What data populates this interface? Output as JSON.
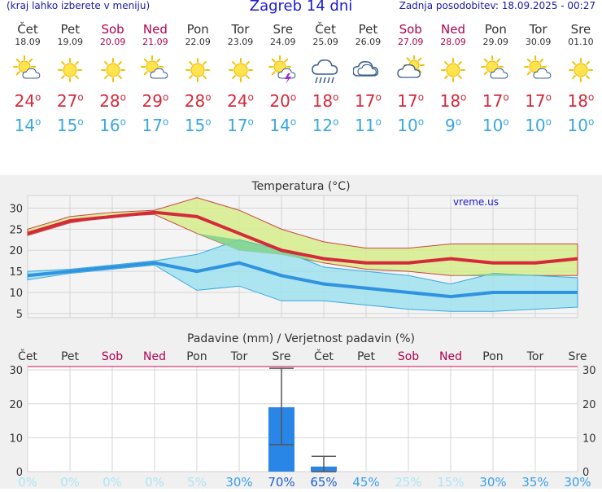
{
  "header": {
    "left_text": "(kraj lahko izberete v meniju)",
    "title": "Zagreb 14 dni",
    "updated": "Zadnja posodobitev: 18.09.2025 - 00:27"
  },
  "colors": {
    "weekday": "#333333",
    "weekend": "#b00050",
    "max_temp": "#d42a3a",
    "min_temp": "#3aa7e0",
    "link": "#1a1ad0",
    "precip_bar": "#2a86e6",
    "max_band": "#d6ec8c",
    "min_band": "#9fe0ef",
    "overlap_band": "#7fd38a"
  },
  "days": [
    {
      "name": "Čet",
      "date": "18.09",
      "weekend": false,
      "icon": "sun-cloud-icon",
      "max": "24",
      "min": "14"
    },
    {
      "name": "Pet",
      "date": "19.09",
      "weekend": false,
      "icon": "sun-icon",
      "max": "27",
      "min": "15"
    },
    {
      "name": "Sob",
      "date": "20.09",
      "weekend": true,
      "icon": "sun-icon",
      "max": "28",
      "min": "16"
    },
    {
      "name": "Ned",
      "date": "21.09",
      "weekend": true,
      "icon": "sun-cloud-icon",
      "max": "29",
      "min": "17"
    },
    {
      "name": "Pon",
      "date": "22.09",
      "weekend": false,
      "icon": "sun-icon",
      "max": "28",
      "min": "15"
    },
    {
      "name": "Tor",
      "date": "23.09",
      "weekend": false,
      "icon": "sun-icon",
      "max": "24",
      "min": "17"
    },
    {
      "name": "Sre",
      "date": "24.09",
      "weekend": false,
      "icon": "sun-storm-icon",
      "max": "20",
      "min": "14"
    },
    {
      "name": "Čet",
      "date": "25.09",
      "weekend": false,
      "icon": "cloud-rain-icon",
      "max": "18",
      "min": "12"
    },
    {
      "name": "Pet",
      "date": "26.09",
      "weekend": false,
      "icon": "cloud-icon",
      "max": "17",
      "min": "11"
    },
    {
      "name": "Sob",
      "date": "27.09",
      "weekend": true,
      "icon": "cloud-sun-icon",
      "max": "17",
      "min": "10"
    },
    {
      "name": "Ned",
      "date": "28.09",
      "weekend": true,
      "icon": "sun-icon",
      "max": "18",
      "min": "9"
    },
    {
      "name": "Pon",
      "date": "29.09",
      "weekend": false,
      "icon": "sun-cloud-icon",
      "max": "17",
      "min": "10"
    },
    {
      "name": "Tor",
      "date": "30.09",
      "weekend": false,
      "icon": "sun-cloud-icon",
      "max": "17",
      "min": "10"
    },
    {
      "name": "Sre",
      "date": "01.10",
      "weekend": false,
      "icon": "sun-icon",
      "max": "18",
      "min": "10"
    }
  ],
  "chart_data": [
    {
      "type": "line",
      "title": "Temperatura (°C)",
      "watermark": "vreme.us",
      "x_count": 14,
      "ylim": [
        4,
        33
      ],
      "yticks": [
        5,
        10,
        15,
        20,
        25,
        30
      ],
      "grid": true,
      "series": [
        {
          "key": "max",
          "values": [
            24,
            27,
            28,
            29,
            28,
            24,
            20,
            18,
            17,
            17,
            18,
            17,
            17,
            18
          ]
        },
        {
          "key": "max_range_low",
          "values": [
            23.5,
            26.5,
            28,
            28.5,
            24,
            20,
            19,
            17,
            15.5,
            15,
            14,
            14,
            14,
            14
          ]
        },
        {
          "key": "max_range_high",
          "values": [
            25,
            28,
            29,
            29.5,
            32.5,
            29.5,
            25,
            22,
            20.5,
            20.5,
            21.5,
            21.5,
            21.5,
            21.5
          ]
        },
        {
          "key": "min",
          "values": [
            14,
            15,
            16,
            17,
            15,
            17,
            14,
            12,
            11,
            10,
            9,
            10,
            10,
            10
          ]
        },
        {
          "key": "min_range_low",
          "values": [
            13,
            14.5,
            15.5,
            16.5,
            10.5,
            11.5,
            8,
            8,
            7,
            6,
            5.5,
            5.5,
            6,
            6.5
          ]
        },
        {
          "key": "min_range_high",
          "values": [
            15,
            15.5,
            16.5,
            17.5,
            19,
            22.5,
            20,
            16,
            15,
            14,
            12,
            14.5,
            14,
            13.5
          ]
        }
      ]
    },
    {
      "type": "bar",
      "title": "Padavine (mm) / Verjetnost padavin (%)",
      "categories": [
        "Čet",
        "Pet",
        "Sob",
        "Ned",
        "Pon",
        "Tor",
        "Sre",
        "Čet",
        "Pet",
        "Sob",
        "Ned",
        "Pon",
        "Tor",
        "Sre"
      ],
      "weekend": [
        false,
        false,
        true,
        true,
        false,
        false,
        false,
        false,
        false,
        true,
        true,
        false,
        false,
        false
      ],
      "values": [
        0,
        0,
        0,
        0,
        0,
        0,
        19,
        1.5,
        0,
        0,
        0,
        0,
        0,
        0
      ],
      "error_low": [
        null,
        null,
        null,
        null,
        null,
        null,
        8,
        0,
        null,
        null,
        null,
        null,
        null,
        null
      ],
      "error_high": [
        null,
        null,
        null,
        null,
        null,
        null,
        30.5,
        4.5,
        null,
        null,
        null,
        null,
        null,
        null
      ],
      "probability": [
        "0%",
        "0%",
        "0%",
        "0%",
        "5%",
        "30%",
        "70%",
        "65%",
        "45%",
        "25%",
        "15%",
        "30%",
        "35%",
        "30%"
      ],
      "ylim": [
        0,
        31
      ],
      "yticks": [
        0,
        10,
        20,
        30
      ],
      "grid": true
    }
  ]
}
